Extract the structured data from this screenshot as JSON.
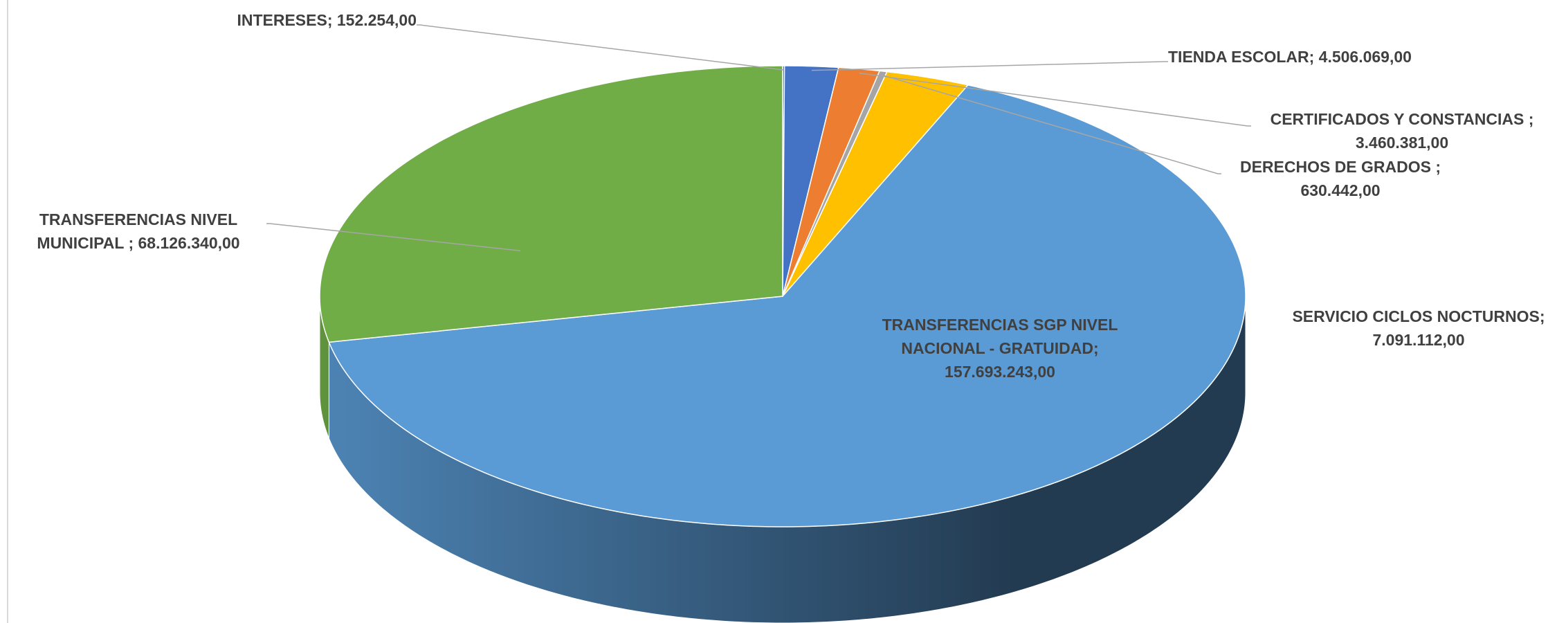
{
  "chart_data": {
    "type": "pie3d",
    "categories": [
      "INTERESES;",
      "TIENDA ESCOLAR;",
      "CERTIFICADOS Y CONSTANCIAS ;",
      "DERECHOS DE GRADOS ;",
      "SERVICIO CICLOS NOCTURNOS;",
      "TRANSFERENCIAS SGP NIVEL NACIONAL - GRATUIDAD;",
      "TRANSFERENCIAS NIVEL MUNICIPAL ;"
    ],
    "values": [
      152254,
      4506069,
      3460381,
      630442,
      7091112,
      157693243,
      68126340
    ],
    "value_labels": [
      "152.254,00",
      "4.506.069,00",
      "3.460.381,00",
      "630.442,00",
      "7.091.112,00",
      "157.693.243,00",
      "68.126.340,00"
    ],
    "colors": [
      "#264478",
      "#4472c4",
      "#ed7d31",
      "#a5a5a5",
      "#ffc000",
      "#5b9bd5",
      "#70ad47"
    ]
  }
}
